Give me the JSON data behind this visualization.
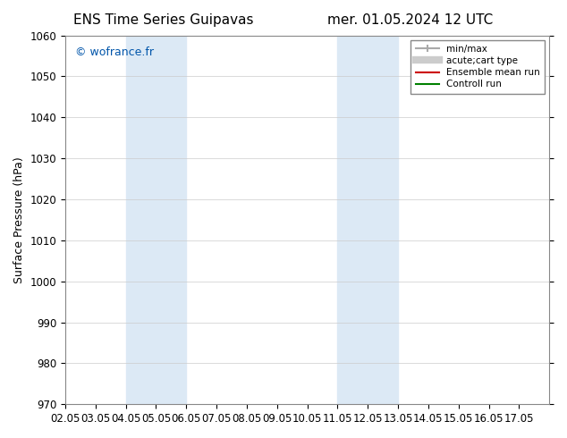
{
  "title_left": "ENS Time Series Guipavas",
  "title_right": "mer. 01.05.2024 12 UTC",
  "ylabel": "Surface Pressure (hPa)",
  "ylim": [
    970,
    1060
  ],
  "yticks": [
    970,
    980,
    990,
    1000,
    1010,
    1020,
    1030,
    1040,
    1050,
    1060
  ],
  "xlim": [
    0,
    16
  ],
  "xtick_labels": [
    "02.05",
    "03.05",
    "04.05",
    "05.05",
    "06.05",
    "07.05",
    "08.05",
    "09.05",
    "10.05",
    "11.05",
    "12.05",
    "13.05",
    "14.05",
    "15.05",
    "16.05",
    "17.05"
  ],
  "xtick_positions": [
    0,
    1,
    2,
    3,
    4,
    5,
    6,
    7,
    8,
    9,
    10,
    11,
    12,
    13,
    14,
    15
  ],
  "shaded_bands": [
    {
      "xmin": 2.0,
      "xmax": 4.0
    },
    {
      "xmin": 9.0,
      "xmax": 11.0
    }
  ],
  "shade_color": "#dce9f5",
  "watermark": "© wofrance.fr",
  "watermark_color": "#0055aa",
  "legend_items": [
    {
      "label": "min/max",
      "color": "#aaaaaa",
      "lw": 1.5,
      "style": "|-|"
    },
    {
      "label": "acute;cart type",
      "color": "#cccccc",
      "lw": 6,
      "style": "line"
    },
    {
      "label": "Ensemble mean run",
      "color": "#cc0000",
      "lw": 1.5,
      "style": "line"
    },
    {
      "label": "Controll run",
      "color": "#008000",
      "lw": 1.5,
      "style": "line"
    }
  ],
  "bg_color": "#ffffff",
  "title_fontsize": 11,
  "tick_fontsize": 8.5,
  "ylabel_fontsize": 9
}
